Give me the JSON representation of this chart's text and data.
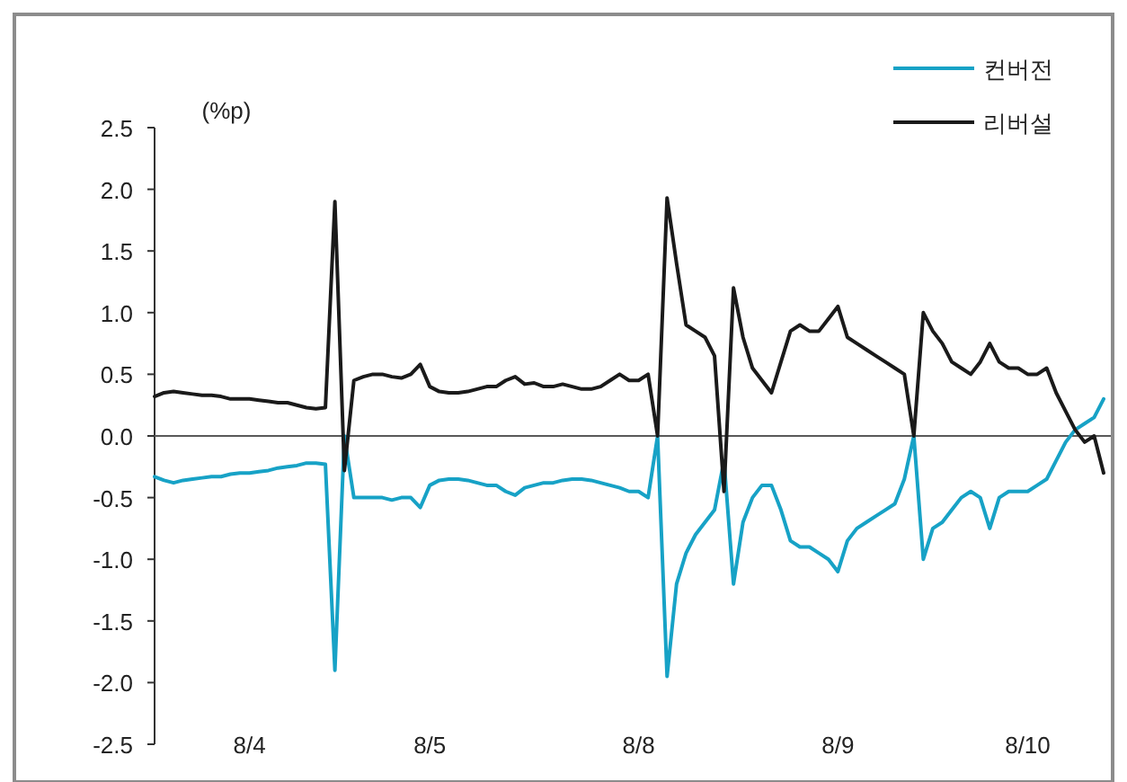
{
  "chart_data": {
    "type": "line",
    "ylabel": "(%p)",
    "legend": "top right",
    "categories": [
      null,
      null,
      null,
      null,
      null,
      null,
      null,
      null,
      null,
      null,
      "8/4",
      null,
      null,
      null,
      null,
      null,
      null,
      null,
      null,
      null,
      null,
      null,
      null,
      null,
      null,
      null,
      null,
      null,
      null,
      "8/5",
      null,
      null,
      null,
      null,
      null,
      null,
      null,
      null,
      null,
      null,
      null,
      null,
      null,
      null,
      null,
      null,
      null,
      null,
      null,
      null,
      null,
      "8/8",
      null,
      null,
      null,
      null,
      null,
      null,
      null,
      null,
      null,
      null,
      null,
      null,
      null,
      null,
      null,
      null,
      null,
      null,
      null,
      null,
      "8/9",
      null,
      null,
      null,
      null,
      null,
      null,
      null,
      null,
      null,
      null,
      null,
      null,
      null,
      null,
      null,
      null,
      null,
      null,
      null,
      "8/10",
      null,
      null,
      null,
      null,
      null,
      null,
      null,
      null
    ],
    "series": [
      {
        "name": "컨버전",
        "color": "#17a2c6",
        "values": [
          -0.33,
          -0.36,
          -0.38,
          -0.36,
          -0.35,
          -0.34,
          -0.33,
          -0.33,
          -0.31,
          -0.3,
          -0.3,
          -0.29,
          -0.28,
          -0.26,
          -0.25,
          -0.24,
          -0.22,
          -0.22,
          -0.23,
          -1.9,
          0,
          -0.5,
          -0.5,
          -0.5,
          -0.5,
          -0.52,
          -0.5,
          -0.5,
          -0.58,
          -0.4,
          -0.36,
          -0.35,
          -0.35,
          -0.36,
          -0.38,
          -0.4,
          -0.4,
          -0.45,
          -0.48,
          -0.42,
          -0.4,
          -0.38,
          -0.38,
          -0.36,
          -0.35,
          -0.35,
          -0.36,
          -0.38,
          -0.4,
          -0.42,
          -0.45,
          -0.45,
          -0.5,
          0,
          -1.95,
          -1.2,
          -0.95,
          -0.8,
          -0.7,
          -0.6,
          -0.2,
          -1.2,
          -0.7,
          -0.5,
          -0.4,
          -0.4,
          -0.6,
          -0.85,
          -0.9,
          -0.9,
          -0.95,
          -1.0,
          -1.1,
          -0.85,
          -0.75,
          -0.7,
          -0.65,
          -0.6,
          -0.55,
          -0.35,
          0,
          -1.0,
          -0.75,
          -0.7,
          -0.6,
          -0.5,
          -0.45,
          -0.5,
          -0.75,
          -0.5,
          -0.45,
          -0.45,
          -0.45,
          -0.4,
          -0.35,
          -0.2,
          -0.05,
          0.05,
          0.1,
          0.15,
          0.3
        ]
      },
      {
        "name": "리버설",
        "color": "#1a1a1a",
        "values": [
          0.32,
          0.35,
          0.36,
          0.35,
          0.34,
          0.33,
          0.33,
          0.32,
          0.3,
          0.3,
          0.3,
          0.29,
          0.28,
          0.27,
          0.27,
          0.25,
          0.23,
          0.22,
          0.23,
          1.9,
          -0.28,
          0.45,
          0.48,
          0.5,
          0.5,
          0.48,
          0.47,
          0.5,
          0.58,
          0.4,
          0.36,
          0.35,
          0.35,
          0.36,
          0.38,
          0.4,
          0.4,
          0.45,
          0.48,
          0.42,
          0.43,
          0.4,
          0.4,
          0.42,
          0.4,
          0.38,
          0.38,
          0.4,
          0.45,
          0.5,
          0.45,
          0.45,
          0.5,
          0,
          1.93,
          1.4,
          0.9,
          0.85,
          0.8,
          0.65,
          -0.45,
          1.2,
          0.8,
          0.55,
          0.45,
          0.35,
          0.6,
          0.85,
          0.9,
          0.85,
          0.85,
          0.95,
          1.05,
          0.8,
          0.75,
          0.7,
          0.65,
          0.6,
          0.55,
          0.5,
          0,
          1.0,
          0.85,
          0.75,
          0.6,
          0.55,
          0.5,
          0.6,
          0.75,
          0.6,
          0.55,
          0.55,
          0.5,
          0.5,
          0.55,
          0.35,
          0.2,
          0.05,
          -0.05,
          0,
          -0.3
        ]
      }
    ],
    "ylim": [
      -2.5,
      2.5
    ],
    "yticks": [
      {
        "value": 2.5,
        "label": "2.5"
      },
      {
        "value": 2,
        "label": "2.0"
      },
      {
        "value": 1.5,
        "label": "1.5"
      },
      {
        "value": 1,
        "label": "1.0"
      },
      {
        "value": 0.5,
        "label": "0.5"
      },
      {
        "value": 0,
        "label": "0.0"
      },
      {
        "value": -0.5,
        "label": "-0.5"
      },
      {
        "value": -1,
        "label": "-1.0"
      },
      {
        "value": -1.5,
        "label": "-1.5"
      },
      {
        "value": -2,
        "label": "-2.0"
      },
      {
        "value": -2.5,
        "label": "-2.5"
      }
    ],
    "ref_lines": [
      {
        "axis": "y",
        "value": 0,
        "label": null,
        "color": "#595959"
      }
    ]
  }
}
